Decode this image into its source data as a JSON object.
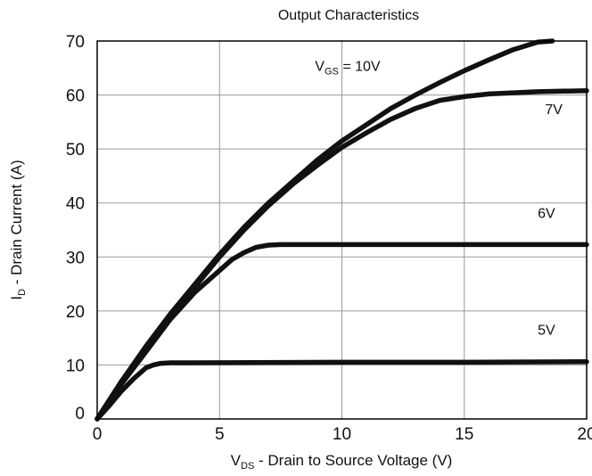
{
  "chart_data": {
    "type": "line",
    "title": "Output Characteristics",
    "xlabel": {
      "main": "V",
      "sub": "DS",
      "rest": " - Drain to Source Voltage (V)"
    },
    "ylabel": {
      "main": "I",
      "sub": "D",
      "rest": " - Drain Current (A)"
    },
    "xlim": [
      0,
      20
    ],
    "ylim": [
      0,
      70
    ],
    "xticks": [
      0,
      5,
      10,
      15,
      20
    ],
    "yticks": [
      0,
      10,
      20,
      30,
      40,
      50,
      60,
      70
    ],
    "grid": true,
    "series": [
      {
        "name": "VGS = 10V",
        "label": {
          "main": "V",
          "sub": "GS",
          "rest": " = 10V"
        },
        "color": "#111111",
        "x": [
          0,
          1,
          2,
          3,
          4,
          5,
          6,
          7,
          8,
          9,
          10,
          11,
          12,
          13,
          14,
          15,
          16,
          17,
          18,
          18.6
        ],
        "y": [
          0,
          7,
          13.5,
          19.5,
          25,
          30.5,
          35.5,
          40,
          44,
          48,
          51.5,
          54.5,
          57.5,
          60,
          62.3,
          64.5,
          66.5,
          68.4,
          69.8,
          70
        ]
      },
      {
        "name": "7V",
        "label": {
          "main": "7V",
          "sub": "",
          "rest": ""
        },
        "color": "#111111",
        "x": [
          0,
          1,
          2,
          3,
          4,
          5,
          6,
          7,
          8,
          9,
          10,
          11,
          12,
          13,
          14,
          15,
          16,
          17,
          18,
          19,
          20
        ],
        "y": [
          0,
          7,
          13,
          19,
          24.5,
          30,
          35,
          39.5,
          43.5,
          47,
          50.3,
          53,
          55.5,
          57.5,
          59,
          59.7,
          60.2,
          60.4,
          60.6,
          60.7,
          60.8
        ]
      },
      {
        "name": "6V",
        "label": {
          "main": "6V",
          "sub": "",
          "rest": ""
        },
        "color": "#111111",
        "x": [
          0,
          1,
          2,
          3,
          4,
          5,
          5.5,
          6,
          6.5,
          7,
          7.5,
          10,
          15,
          20
        ],
        "y": [
          0,
          6.5,
          12.5,
          18.5,
          23.5,
          27.5,
          29.5,
          30.8,
          31.8,
          32.2,
          32.3,
          32.3,
          32.3,
          32.3
        ]
      },
      {
        "name": "5V",
        "label": {
          "main": "5V",
          "sub": "",
          "rest": ""
        },
        "color": "#111111",
        "x": [
          0,
          0.5,
          1,
          1.5,
          2,
          2.3,
          2.6,
          3,
          4,
          10,
          15,
          20
        ],
        "y": [
          0,
          2.5,
          5.2,
          7.5,
          9.5,
          10,
          10.3,
          10.4,
          10.4,
          10.5,
          10.5,
          10.6
        ]
      }
    ],
    "annotations": [
      {
        "series": 0,
        "x": 8.9,
        "y": 64.5
      },
      {
        "series": 1,
        "x": 18.3,
        "y": 56.5
      },
      {
        "series": 2,
        "x": 18,
        "y": 37.2
      },
      {
        "series": 3,
        "x": 18,
        "y": 15.6
      }
    ]
  }
}
